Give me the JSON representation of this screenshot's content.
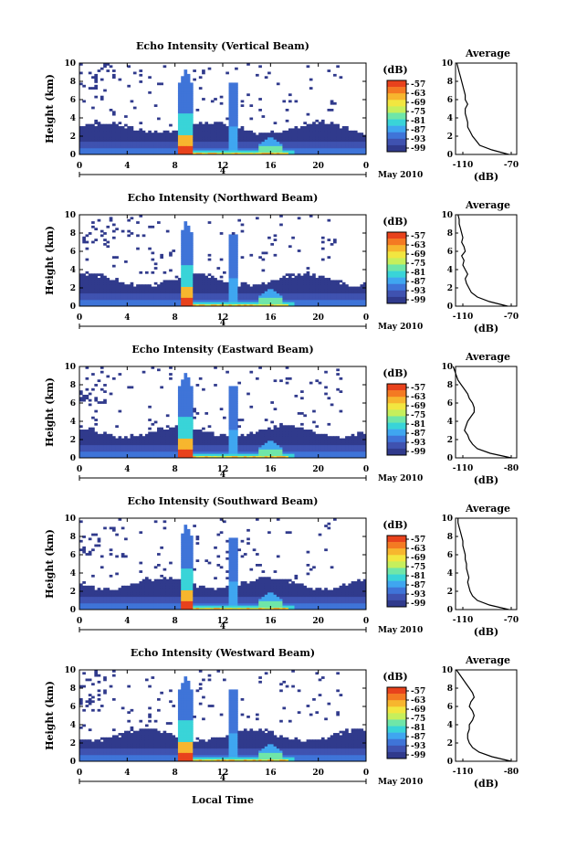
{
  "figure": {
    "xlabel": "Local Time",
    "date_label": "May 2010",
    "colors": [
      "#303a8c",
      "#3f52b0",
      "#3f74d8",
      "#3fa6f0",
      "#39d4d8",
      "#6fe6a8",
      "#c6ef5c",
      "#f2e640",
      "#f7b62e",
      "#f47a22",
      "#e8421c"
    ],
    "chart_data": [
      {
        "type": "heatmap",
        "title": "Echo Intensity (Vertical Beam)",
        "ylabel": "Height (km)",
        "x_ticks": [
          "0",
          "4",
          "8",
          "12",
          "16",
          "20",
          "0"
        ],
        "x_range": [
          0,
          24
        ],
        "y_ticks": [
          "0",
          "2",
          "4",
          "6",
          "8",
          "10"
        ],
        "y_range": [
          0,
          10
        ],
        "day_label": "4",
        "colorbar_unit": "(dB)",
        "colorbar_ticks": [
          "-57",
          "-63",
          "-69",
          "-75",
          "-81",
          "-87",
          "-93",
          "-99"
        ],
        "inset": {
          "title": "Average",
          "xlabel": "(dB)",
          "x_ticks": [
            "-110",
            "-70"
          ],
          "y_ticks": [
            "0",
            "2",
            "4",
            "6",
            "8",
            "10"
          ],
          "profile_db": [
            -72,
            -86,
            -96,
            -99,
            -102,
            -104,
            -106,
            -106,
            -107,
            -108,
            -108,
            -106,
            -108,
            -108,
            -109,
            -110,
            -111,
            -112,
            -113,
            -114,
            -115
          ]
        }
      },
      {
        "type": "heatmap",
        "title": "Echo Intensity (Northward Beam)",
        "ylabel": "Height (km)",
        "x_ticks": [
          "0",
          "4",
          "8",
          "12",
          "16",
          "20",
          "0"
        ],
        "x_range": [
          0,
          24
        ],
        "y_ticks": [
          "0",
          "2",
          "4",
          "6",
          "8",
          "10"
        ],
        "y_range": [
          0,
          10
        ],
        "day_label": "4",
        "colorbar_unit": "(dB)",
        "colorbar_ticks": [
          "-57",
          "-63",
          "-69",
          "-75",
          "-81",
          "-87",
          "-93",
          "-99"
        ],
        "inset": {
          "title": "Average",
          "xlabel": "(dB)",
          "x_ticks": [
            "-110",
            "-70"
          ],
          "y_ticks": [
            "0",
            "2",
            "4",
            "6",
            "8",
            "10"
          ],
          "profile_db": [
            -73,
            -88,
            -98,
            -103,
            -105,
            -107,
            -108,
            -106,
            -108,
            -110,
            -109,
            -111,
            -108,
            -109,
            -111,
            -110,
            -111,
            -112,
            -113,
            -113,
            -114
          ]
        }
      },
      {
        "type": "heatmap",
        "title": "Echo Intensity (Eastward Beam)",
        "ylabel": "Height (km)",
        "x_ticks": [
          "0",
          "4",
          "8",
          "12",
          "16",
          "20",
          "0"
        ],
        "x_range": [
          0,
          24
        ],
        "y_ticks": [
          "0",
          "2",
          "4",
          "6",
          "8",
          "10"
        ],
        "y_range": [
          0,
          10
        ],
        "day_label": "4",
        "colorbar_unit": "(dB)",
        "colorbar_ticks": [
          "-57",
          "-63",
          "-69",
          "-75",
          "-81",
          "-87",
          "-93",
          "-99"
        ],
        "inset": {
          "title": "Average",
          "xlabel": "(dB)",
          "x_ticks": [
            "-110",
            "-80"
          ],
          "y_ticks": [
            "0",
            "2",
            "4",
            "6",
            "8",
            "10"
          ],
          "profile_db": [
            -80,
            -93,
            -101,
            -104,
            -106,
            -107,
            -109,
            -108,
            -107,
            -105,
            -103,
            -103,
            -104,
            -106,
            -107,
            -109,
            -111,
            -113,
            -114,
            -115,
            -116
          ]
        }
      },
      {
        "type": "heatmap",
        "title": "Echo Intensity (Southward Beam)",
        "ylabel": "Height (km)",
        "x_ticks": [
          "0",
          "4",
          "8",
          "12",
          "16",
          "20",
          "0"
        ],
        "x_range": [
          0,
          24
        ],
        "y_ticks": [
          "0",
          "2",
          "4",
          "6",
          "8",
          "10"
        ],
        "y_range": [
          0,
          10
        ],
        "day_label": "4",
        "colorbar_unit": "(dB)",
        "colorbar_ticks": [
          "-57",
          "-63",
          "-69",
          "-75",
          "-81",
          "-87",
          "-93",
          "-99"
        ],
        "inset": {
          "title": "Average",
          "xlabel": "(dB)",
          "x_ticks": [
            "-110",
            "-70"
          ],
          "y_ticks": [
            "0",
            "2",
            "4",
            "6",
            "8",
            "10"
          ],
          "profile_db": [
            -72,
            -88,
            -98,
            -102,
            -104,
            -105,
            -106,
            -105,
            -106,
            -107,
            -107,
            -108,
            -108,
            -109,
            -110,
            -110,
            -111,
            -112,
            -113,
            -114,
            -114
          ]
        }
      },
      {
        "type": "heatmap",
        "title": "Echo Intensity (Westward Beam)",
        "ylabel": "Height (km)",
        "x_ticks": [
          "0",
          "4",
          "8",
          "12",
          "16",
          "20",
          "0"
        ],
        "x_range": [
          0,
          24
        ],
        "y_ticks": [
          "0",
          "2",
          "4",
          "6",
          "8",
          "10"
        ],
        "y_range": [
          0,
          10
        ],
        "day_label": "4",
        "colorbar_unit": "(dB)",
        "colorbar_ticks": [
          "-57",
          "-63",
          "-69",
          "-75",
          "-81",
          "-87",
          "-93",
          "-99"
        ],
        "inset": {
          "title": "Average",
          "xlabel": "(dB)",
          "x_ticks": [
            "-110",
            "-80"
          ],
          "y_ticks": [
            "0",
            "2",
            "4",
            "6",
            "8",
            "10"
          ],
          "profile_db": [
            -80,
            -92,
            -100,
            -104,
            -106,
            -107,
            -107,
            -106,
            -106,
            -104,
            -103,
            -104,
            -106,
            -105,
            -103,
            -104,
            -106,
            -108,
            -110,
            -112,
            -114
          ]
        }
      }
    ]
  }
}
